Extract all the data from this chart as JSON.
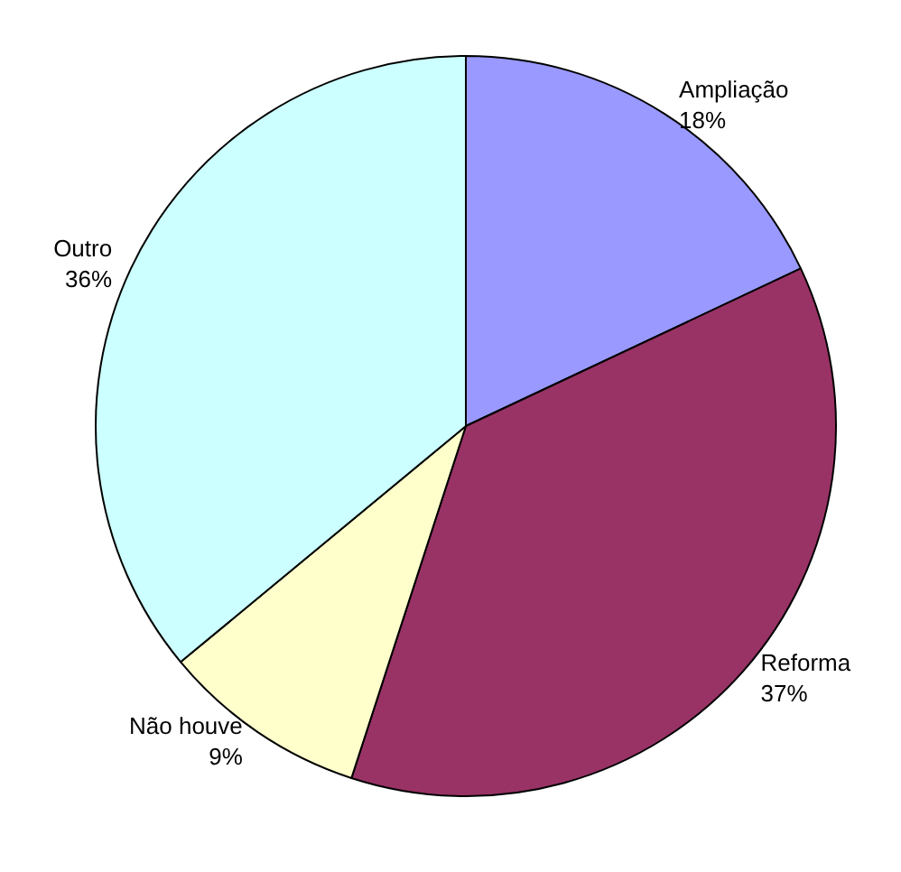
{
  "chart_data": {
    "type": "pie",
    "categories": [
      "Ampliação",
      "Reforma",
      "Não houve",
      "Outro"
    ],
    "values": [
      18,
      37,
      9,
      36
    ],
    "colors": [
      "#9999ff",
      "#993366",
      "#ffffcc",
      "#ccffff"
    ],
    "value_labels": [
      "18%",
      "37%",
      "9%",
      "36%"
    ]
  }
}
